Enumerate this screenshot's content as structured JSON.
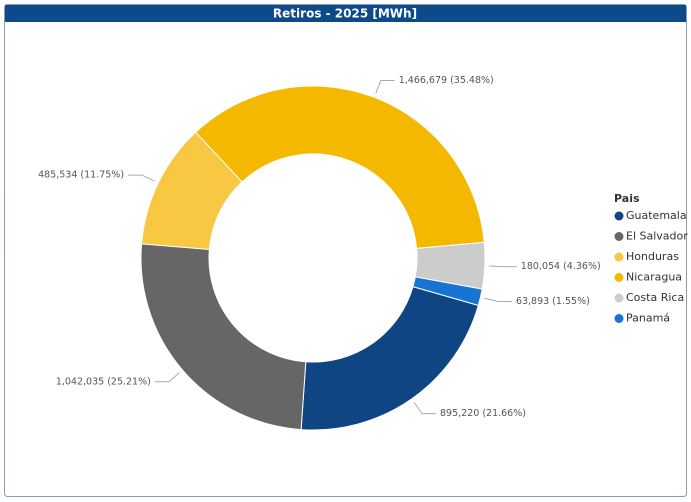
{
  "chart_data": {
    "type": "donut",
    "title": "Retiros - 2025 [MWh]",
    "legend_title": "Pais",
    "categories": [
      "Guatemala",
      "El Salvador",
      "Honduras",
      "Nicaragua",
      "Costa Rica",
      "Panamá"
    ],
    "values": [
      895220,
      1042035,
      485534,
      1466679,
      180054,
      63893
    ],
    "value_labels": [
      "895,220 (21.66%)",
      "1,042,035 (25.21%)",
      "485,534 (11.75%)",
      "1,466,679 (35.48%)",
      "180,054 (4.36%)",
      "63,893 (1.55%)"
    ],
    "colors": [
      "#0f4583",
      "#666666",
      "#f8c843",
      "#f5b800",
      "#cccccc",
      "#1874d2"
    ],
    "legend": "right"
  }
}
